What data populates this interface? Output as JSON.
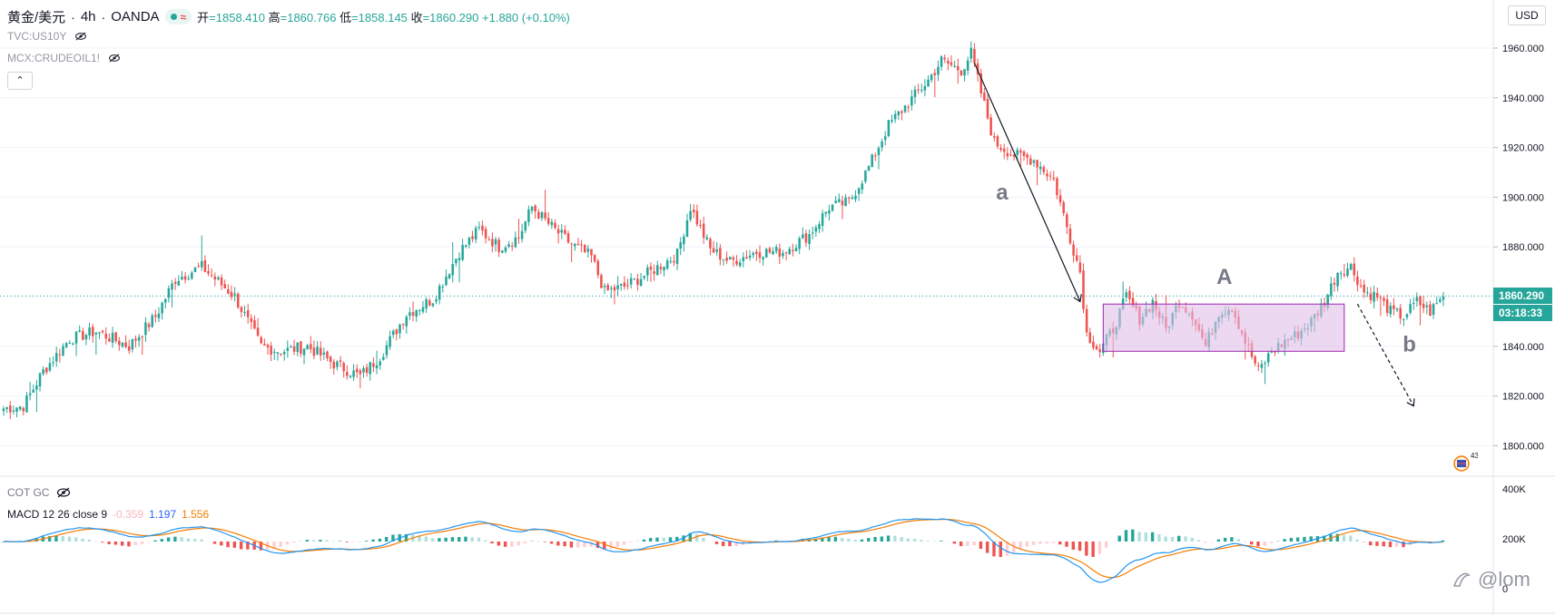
{
  "header": {
    "symbol": "黄金/美元",
    "sep1": "·",
    "timeframe": "4h",
    "sep2": "·",
    "broker": "OANDA",
    "wave": "≈",
    "ohlc": {
      "open_label": "开",
      "open": "=1858.410",
      "high_label": "高",
      "high": "=1860.766",
      "low_label": "低",
      "low": "=1858.145",
      "close_label": "收",
      "close": "=1860.290",
      "change": "+1.880 (+0.10%)"
    }
  },
  "overlays": [
    {
      "label": "TVC:US10Y"
    },
    {
      "label": "MCX:CRUDEOIL1!"
    }
  ],
  "collapse_glyph": "⌃",
  "currency_button": "USD",
  "price_scale": {
    "ticks": [
      "1960.000",
      "1940.000",
      "1920.000",
      "1900.000",
      "1880.000",
      "1860.000",
      "1840.000",
      "1820.000",
      "1800.000"
    ],
    "last_price": "1860.290",
    "countdown": "03:18:33",
    "colors": {
      "up": "#26a69a",
      "down": "#ef5350",
      "box_fill": "#e1bee7",
      "box_stroke": "#9c27b0"
    }
  },
  "annotations": {
    "a": "a",
    "A": "A",
    "b": "b"
  },
  "indicator_pane": {
    "cot_title": "COT GC",
    "macd_name": "MACD 12 26 close 9",
    "macd_hist": "-0.359",
    "macd_line": "1.197",
    "macd_signal": "1.556",
    "scale_ticks": [
      "400K",
      "200K",
      "0"
    ],
    "colors": {
      "macd": "#2196f3",
      "signal": "#f57c00",
      "hist_up_strong": "#26a69a",
      "hist_up_weak": "#b2dfdb",
      "hist_down_strong": "#ef5350",
      "hist_down_weak": "#ffcdd2"
    }
  },
  "events_count": "43",
  "watermark": "@lom",
  "chart_data": {
    "type": "candlestick",
    "symbol": "黄金/美元",
    "timeframe": "4h",
    "ylim": [
      1795,
      1968
    ],
    "price_ticks": [
      1960,
      1940,
      1920,
      1900,
      1880,
      1860,
      1840,
      1820,
      1800
    ],
    "last_price": 1860.29,
    "anchors": [
      [
        0,
        1815
      ],
      [
        6,
        1816
      ],
      [
        12,
        1830
      ],
      [
        20,
        1843
      ],
      [
        28,
        1846
      ],
      [
        38,
        1840
      ],
      [
        46,
        1852
      ],
      [
        52,
        1867
      ],
      [
        60,
        1872
      ],
      [
        70,
        1860
      ],
      [
        78,
        1840
      ],
      [
        84,
        1838
      ],
      [
        92,
        1840
      ],
      [
        100,
        1833
      ],
      [
        108,
        1828
      ],
      [
        114,
        1836
      ],
      [
        122,
        1853
      ],
      [
        130,
        1859
      ],
      [
        138,
        1878
      ],
      [
        144,
        1887
      ],
      [
        150,
        1880
      ],
      [
        156,
        1884
      ],
      [
        160,
        1896
      ],
      [
        166,
        1888
      ],
      [
        172,
        1881
      ],
      [
        178,
        1876
      ],
      [
        182,
        1862
      ],
      [
        188,
        1864
      ],
      [
        196,
        1870
      ],
      [
        204,
        1877
      ],
      [
        208,
        1896
      ],
      [
        214,
        1879
      ],
      [
        220,
        1874
      ],
      [
        228,
        1878
      ],
      [
        236,
        1878
      ],
      [
        244,
        1885
      ],
      [
        250,
        1896
      ],
      [
        256,
        1898
      ],
      [
        262,
        1912
      ],
      [
        268,
        1929
      ],
      [
        274,
        1938
      ],
      [
        280,
        1947
      ],
      [
        284,
        1955
      ],
      [
        290,
        1951
      ],
      [
        293,
        1958
      ],
      [
        296,
        1942
      ],
      [
        300,
        1922
      ],
      [
        306,
        1917
      ],
      [
        312,
        1915
      ],
      [
        318,
        1907
      ],
      [
        322,
        1888
      ],
      [
        326,
        1870
      ],
      [
        328,
        1845
      ],
      [
        332,
        1838
      ],
      [
        336,
        1847
      ],
      [
        340,
        1860
      ],
      [
        344,
        1851
      ],
      [
        348,
        1858
      ],
      [
        352,
        1847
      ],
      [
        356,
        1858
      ],
      [
        360,
        1853
      ],
      [
        364,
        1840
      ],
      [
        368,
        1854
      ],
      [
        372,
        1856
      ],
      [
        376,
        1842
      ],
      [
        380,
        1830
      ],
      [
        384,
        1838
      ],
      [
        388,
        1842
      ],
      [
        392,
        1845
      ],
      [
        396,
        1850
      ],
      [
        400,
        1858
      ],
      [
        404,
        1870
      ],
      [
        408,
        1872
      ],
      [
        412,
        1862
      ],
      [
        416,
        1860
      ],
      [
        420,
        1854
      ],
      [
        424,
        1852
      ],
      [
        428,
        1858
      ],
      [
        432,
        1854
      ],
      [
        436,
        1860
      ]
    ],
    "candle_count": 437,
    "annotations": [
      {
        "label": "a",
        "from": [
          294,
          1954
        ],
        "to": [
          326,
          1858
        ],
        "style": "solid-arrow"
      },
      {
        "label": "A",
        "box": {
          "x0": 333,
          "x1": 406,
          "y0": 1838,
          "y1": 1857
        }
      },
      {
        "label": "b",
        "from": [
          410,
          1857
        ],
        "to": [
          427,
          1816
        ],
        "style": "dashed-arrow"
      }
    ],
    "macd": {
      "name": "MACD 12 26 close 9",
      "histogram": -0.359,
      "macd": 1.197,
      "signal": 1.556,
      "scale_ticks": [
        "400K",
        "200K",
        "0"
      ]
    }
  }
}
